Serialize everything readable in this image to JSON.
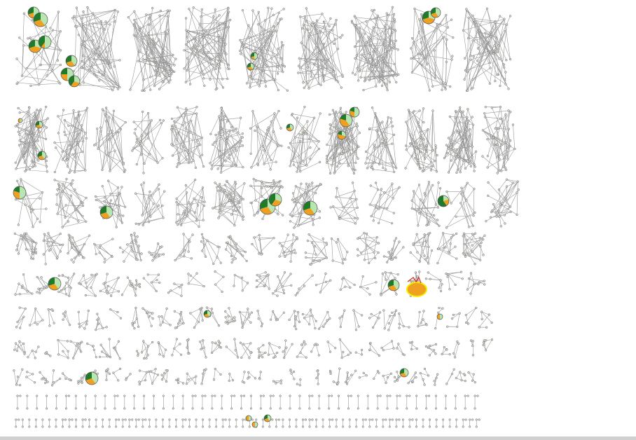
{
  "colors": {
    "node_fill": "#d6dccd",
    "edge": "#9a9a9a",
    "pie_light": "#b8e6b0",
    "pie_orange": "#f0a020",
    "pie_dark": "#1f7a2a",
    "pie_peach": "#f5d090",
    "highlight": "#f2ee00",
    "marker": "#e02020",
    "background": "#ffffff"
  },
  "rows": [
    {
      "clusters": 9
    },
    {
      "clusters": 13
    },
    {
      "clusters": 13
    },
    {
      "clusters": 18
    },
    {
      "clusters": 22
    },
    {
      "clusters": 30
    },
    {
      "clusters": 34
    },
    {
      "clusters": 38
    },
    {
      "clusters": 48
    },
    {
      "clusters": 70
    }
  ]
}
